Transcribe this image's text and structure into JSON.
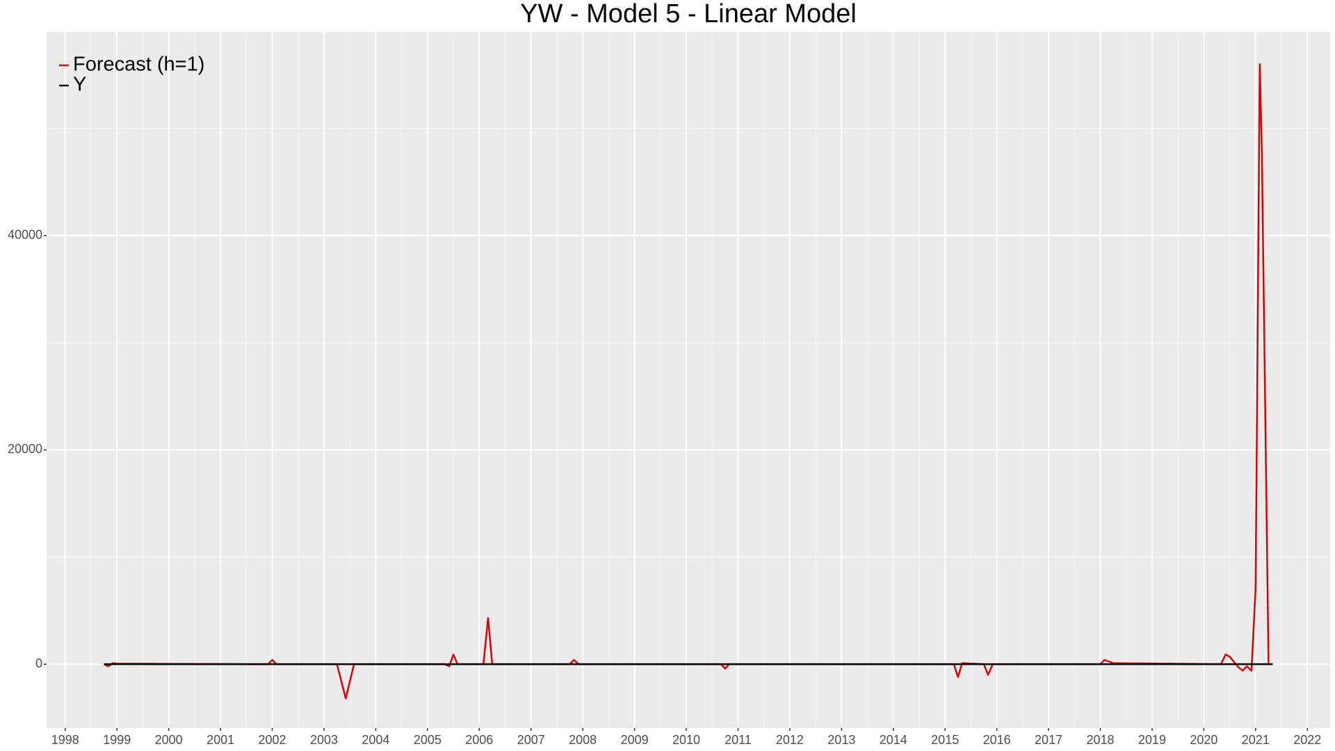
{
  "chart_data": {
    "type": "line",
    "title": "YW - Model 5 - Linear Model",
    "xlim": [
      1997.64,
      2022.44
    ],
    "xticks": [
      1998,
      1999,
      2000,
      2001,
      2002,
      2003,
      2004,
      2005,
      2006,
      2007,
      2008,
      2009,
      2010,
      2011,
      2012,
      2013,
      2014,
      2015,
      2016,
      2017,
      2018,
      2019,
      2020,
      2021,
      2022
    ],
    "ylim": [
      -5960,
      59000
    ],
    "yticks": [
      0,
      20000,
      40000
    ],
    "grid": true,
    "legend": "top-left",
    "series": [
      {
        "name": "Forecast (h=1)",
        "color": "#dd0000",
        "x": [
          1998.75,
          1998.83,
          1998.92,
          1999.0,
          2001.92,
          2002.0,
          2002.08,
          2003.25,
          2003.42,
          2003.58,
          2005.33,
          2005.42,
          2005.5,
          2005.58,
          2006.08,
          2006.17,
          2006.25,
          2007.75,
          2007.83,
          2007.92,
          2010.67,
          2010.75,
          2010.83,
          2015.17,
          2015.25,
          2015.33,
          2015.75,
          2015.83,
          2015.92,
          2018.0,
          2018.08,
          2018.25,
          2020.33,
          2020.42,
          2020.5,
          2020.67,
          2020.75,
          2020.83,
          2020.92,
          2021.0,
          2021.08,
          2021.12,
          2021.25
        ],
        "values": [
          0,
          -200,
          100,
          50,
          0,
          400,
          0,
          0,
          -3200,
          0,
          0,
          -200,
          900,
          0,
          0,
          4300,
          0,
          0,
          400,
          0,
          0,
          -400,
          0,
          0,
          -1200,
          100,
          0,
          -1000,
          0,
          0,
          400,
          100,
          0,
          900,
          700,
          -300,
          -600,
          -200,
          -600,
          7000,
          56000,
          48000,
          0
        ]
      },
      {
        "name": "Y",
        "color": "#000000",
        "x": [
          1998.75,
          2021.33
        ],
        "values": [
          0,
          0
        ]
      }
    ]
  }
}
